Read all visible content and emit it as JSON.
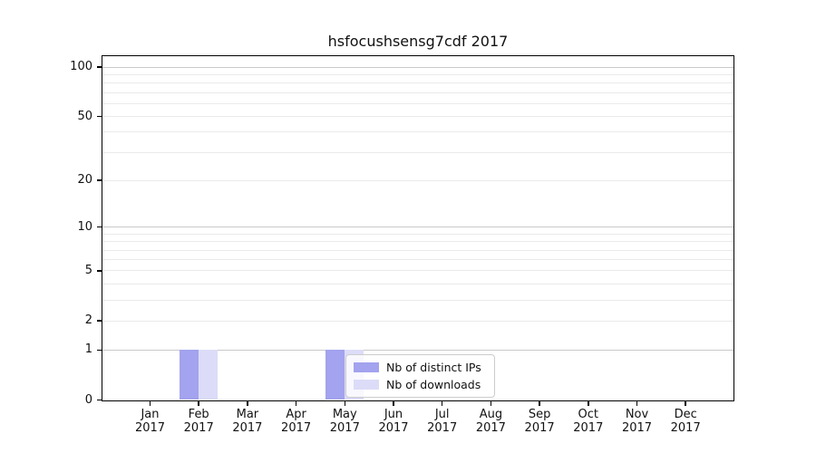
{
  "figure": {
    "background": "#ffffff"
  },
  "chart_data": {
    "type": "bar",
    "title": "hsfocushsensg7cdf 2017",
    "categories": [
      "Jan 2017",
      "Feb 2017",
      "Mar 2017",
      "Apr 2017",
      "May 2017",
      "Jun 2017",
      "Jul 2017",
      "Aug 2017",
      "Sep 2017",
      "Oct 2017",
      "Nov 2017",
      "Dec 2017"
    ],
    "x_tick_lines": {
      "months": [
        "Jan",
        "Feb",
        "Mar",
        "Apr",
        "May",
        "Jun",
        "Jul",
        "Aug",
        "Sep",
        "Oct",
        "Nov",
        "Dec"
      ],
      "year": "2017"
    },
    "series": [
      {
        "name": "Nb of distinct IPs",
        "color": "#a3a3ef",
        "values": [
          0,
          1,
          0,
          0,
          1,
          0,
          0,
          0,
          0,
          0,
          0,
          0
        ]
      },
      {
        "name": "Nb of downloads",
        "color": "#dcdcf8",
        "values": [
          0,
          1,
          0,
          0,
          1,
          0,
          0,
          0,
          0,
          0,
          0,
          0
        ]
      }
    ],
    "y_axis": {
      "scale": "log1p",
      "ticks": [
        0,
        1,
        2,
        5,
        10,
        20,
        50,
        100
      ],
      "ylim": [
        0,
        116
      ],
      "grid_major": [
        1,
        10,
        100
      ],
      "grid_minor": [
        2,
        3,
        4,
        5,
        6,
        7,
        8,
        9,
        20,
        30,
        40,
        50,
        60,
        70,
        80,
        90
      ]
    },
    "legend": {
      "position": "lower center inside plot",
      "entries": [
        "Nb of distinct IPs",
        "Nb of downloads"
      ]
    },
    "grid": true
  },
  "colors": {
    "bar_distinct_ips": "#a3a3ef",
    "bar_downloads": "#dcdcf8",
    "grid_major": "#c9c9c9",
    "grid_minor": "#eaeaea",
    "spine": "#000000",
    "text": "#111111",
    "legend_border": "#cccccc"
  }
}
